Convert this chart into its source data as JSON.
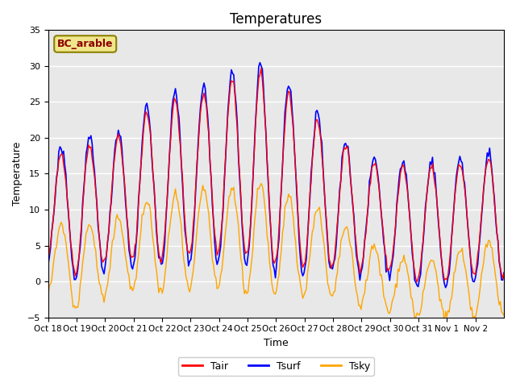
{
  "title": "Temperatures",
  "xlabel": "Time",
  "ylabel": "Temperature",
  "ylim": [
    -5,
    35
  ],
  "legend_label": "BC_arable",
  "line_colors": {
    "Tair": "red",
    "Tsurf": "blue",
    "Tsky": "orange"
  },
  "background_color": "#e8e8e8",
  "xtick_labels": [
    "Oct 18",
    "Oct 19",
    "Oct 20",
    "Oct 21",
    "Oct 22",
    "Oct 23",
    "Oct 24",
    "Oct 25",
    "Oct 26",
    "Oct 27",
    "Oct 28",
    "Oct 29",
    "Oct 30",
    "Oct 31",
    "Nov 1",
    "Nov 2"
  ],
  "gridcolor": "white",
  "legend_box_color": "#f0e68c",
  "legend_box_edgecolor": "#8B8000"
}
